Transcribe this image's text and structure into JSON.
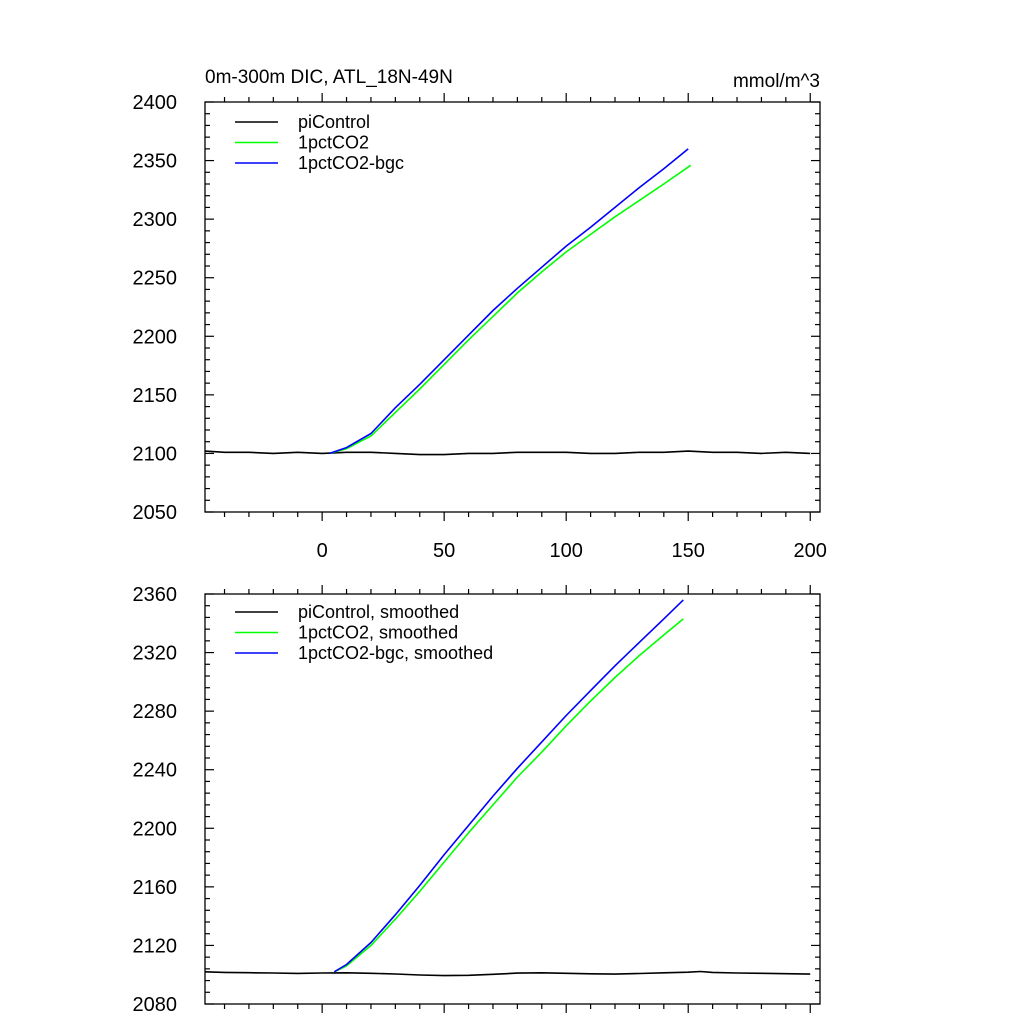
{
  "chart_data": [
    {
      "type": "line",
      "title_left": "0m-300m DIC, ATL_18N-49N",
      "title_right": "mmol/m^3",
      "xlabel": "",
      "ylabel": "",
      "xlim": [
        -48,
        204
      ],
      "ylim": [
        2050,
        2400
      ],
      "xticks": [
        0,
        50,
        100,
        150,
        200
      ],
      "yticks": [
        2050,
        2100,
        2150,
        2200,
        2250,
        2300,
        2350,
        2400
      ],
      "show_x_tick_labels": true,
      "legend_position": "top-left",
      "series": [
        {
          "name": "piControl",
          "color": "#000000",
          "x": [
            -48,
            -40,
            -30,
            -20,
            -10,
            0,
            10,
            20,
            30,
            40,
            50,
            60,
            70,
            80,
            90,
            100,
            110,
            120,
            130,
            140,
            150,
            160,
            170,
            180,
            190,
            200
          ],
          "values": [
            2102,
            2101,
            2101,
            2100,
            2101,
            2100,
            2101,
            2101,
            2100,
            2099,
            2099,
            2100,
            2100,
            2101,
            2101,
            2101,
            2100,
            2100,
            2101,
            2101,
            2102,
            2101,
            2101,
            2100,
            2101,
            2100
          ]
        },
        {
          "name": "1pctCO2",
          "color": "#00ff00",
          "x": [
            3,
            10,
            20,
            30,
            40,
            50,
            60,
            70,
            80,
            90,
            100,
            110,
            120,
            130,
            140,
            151
          ],
          "values": [
            2100,
            2104,
            2115,
            2135,
            2155,
            2176,
            2197,
            2217,
            2237,
            2255,
            2272,
            2287,
            2302,
            2316,
            2330,
            2346
          ]
        },
        {
          "name": "1pctCO2-bgc",
          "color": "#0000ff",
          "x": [
            3,
            10,
            20,
            30,
            40,
            50,
            60,
            70,
            80,
            90,
            100,
            110,
            120,
            130,
            140,
            150
          ],
          "values": [
            2100,
            2105,
            2117,
            2139,
            2159,
            2180,
            2201,
            2222,
            2241,
            2259,
            2277,
            2293,
            2310,
            2327,
            2343,
            2360
          ]
        }
      ]
    },
    {
      "type": "line",
      "title_left": "",
      "title_right": "",
      "xlabel": "",
      "ylabel": "",
      "xlim": [
        -48,
        204
      ],
      "ylim": [
        2080,
        2360
      ],
      "xticks": [
        0,
        50,
        100,
        150,
        200
      ],
      "yticks": [
        2080,
        2120,
        2160,
        2200,
        2240,
        2280,
        2320,
        2360
      ],
      "show_x_tick_labels": false,
      "legend_position": "top-left",
      "series": [
        {
          "name": "piControl, smoothed",
          "color": "#000000",
          "x": [
            -48,
            -40,
            -30,
            -20,
            -10,
            0,
            10,
            20,
            30,
            40,
            50,
            60,
            70,
            80,
            90,
            100,
            110,
            120,
            130,
            140,
            150,
            155,
            160,
            170,
            180,
            190,
            200
          ],
          "values": [
            2102,
            2101.6,
            2101.4,
            2101.2,
            2100.9,
            2101.2,
            2101.3,
            2101.0,
            2100.5,
            2099.8,
            2099.4,
            2099.6,
            2100.3,
            2101.1,
            2101.3,
            2101.0,
            2100.6,
            2100.4,
            2100.8,
            2101.3,
            2101.7,
            2102.2,
            2101.6,
            2101.2,
            2101.0,
            2100.7,
            2100.4
          ]
        },
        {
          "name": "1pctCO2, smoothed",
          "color": "#00ff00",
          "x": [
            5,
            10,
            20,
            30,
            40,
            50,
            60,
            70,
            80,
            90,
            100,
            110,
            120,
            130,
            140,
            148
          ],
          "values": [
            2102,
            2106,
            2120,
            2138,
            2157,
            2177,
            2197,
            2216,
            2235,
            2252,
            2270,
            2287,
            2303,
            2318,
            2332,
            2343
          ]
        },
        {
          "name": "1pctCO2-bgc, smoothed",
          "color": "#0000ff",
          "x": [
            5,
            10,
            20,
            30,
            40,
            50,
            60,
            70,
            80,
            90,
            100,
            110,
            120,
            130,
            140,
            148
          ],
          "values": [
            2102,
            2107,
            2122,
            2141,
            2161,
            2182,
            2202,
            2222,
            2241,
            2259,
            2277,
            2294,
            2311,
            2327,
            2343,
            2356
          ]
        }
      ]
    }
  ]
}
